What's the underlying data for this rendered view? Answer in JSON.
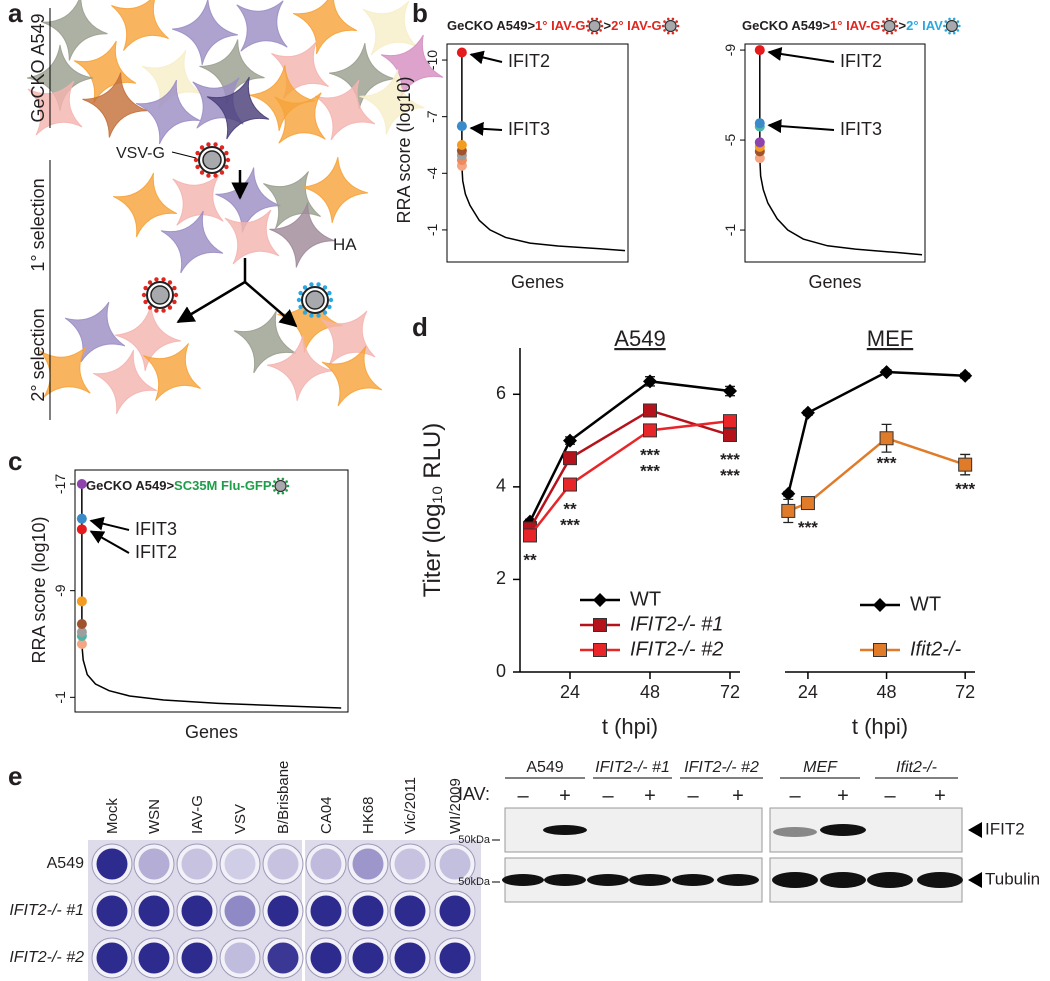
{
  "panel_labels": [
    "a",
    "b",
    "c",
    "d",
    "e"
  ],
  "panel_a": {
    "cell_line": "GeCKO A549",
    "selections": [
      "1° selection",
      "2° selection"
    ],
    "viruses": [
      "VSV-G",
      "HA"
    ]
  },
  "chart_data": [
    {
      "type": "rank",
      "title": [
        {
          "text": "GeCKO A549>",
          "color": "#231f20"
        },
        {
          "text": "1° IAV-G",
          "color": "#e0261f"
        },
        {
          "text": ">",
          "color": "#231f20"
        },
        {
          "text": "2° IAV-G",
          "color": "#e0261f"
        }
      ],
      "y_label": "RRA score (log10)",
      "x_label": "Genes",
      "ylim": [
        0.7,
        -10.85
      ],
      "yticks": [
        -10,
        -7,
        -4,
        -1
      ],
      "xlim": [
        -1700,
        19000
      ],
      "curve": {
        "x": [
          1,
          100,
          400,
          930,
          2000,
          3220,
          5000,
          7790,
          11000,
          15800,
          18660
        ],
        "values": [
          -4.4,
          -3.6,
          -2.9,
          -2.3,
          -1.5,
          -1.0,
          -0.6,
          -0.3,
          -0.15,
          0.0,
          0.1
        ]
      },
      "points": {
        "x": [
          1,
          2,
          3,
          4,
          5,
          6,
          7
        ],
        "values": [
          -10.4,
          -6.5,
          -5.5,
          -5.2,
          -4.95,
          -4.7,
          -4.4
        ],
        "colors": [
          "#e41a1c",
          "#3b8bc8",
          "#f39c1f",
          "#a0522d",
          "#9e9e9e",
          "#f08a5d",
          "#f4a582"
        ]
      },
      "annotations": [
        "IFIT2",
        "IFIT3"
      ]
    },
    {
      "type": "rank",
      "title": [
        {
          "text": "GeCKO A549>",
          "color": "#231f20"
        },
        {
          "text": "1° IAV-G",
          "color": "#e0261f"
        },
        {
          "text": ">",
          "color": "#231f20"
        },
        {
          "text": "2° IAV",
          "color": "#29a9e1"
        }
      ],
      "x_label": "Genes",
      "ylim": [
        0.42,
        -9.27
      ],
      "yticks": [
        -9,
        -5,
        -1
      ],
      "xlim": [
        -1700,
        19000
      ],
      "curve": {
        "x": [
          1,
          100,
          400,
          930,
          2000,
          3220,
          5000,
          7790,
          11000,
          15800,
          18660
        ],
        "values": [
          -4.2,
          -3.4,
          -2.8,
          -2.2,
          -1.5,
          -1.0,
          -0.6,
          -0.3,
          -0.15,
          0.0,
          0.1
        ]
      },
      "points": {
        "x": [
          1,
          2,
          3,
          4,
          5,
          6,
          7
        ],
        "values": [
          -9.0,
          -5.75,
          -5.6,
          -4.9,
          -4.7,
          -4.5,
          -4.2
        ],
        "colors": [
          "#e41a1c",
          "#3b8bc8",
          "#4bb5a8",
          "#8e44ad",
          "#f39c1f",
          "#a0522d",
          "#f4a582"
        ]
      },
      "annotations": [
        "IFIT2",
        "IFIT3"
      ]
    },
    {
      "type": "rank",
      "title": [
        {
          "text": "GeCKO A549>",
          "color": "#231f20"
        },
        {
          "text": "SC35M Flu-GFP",
          "color": "#1e9e48"
        }
      ],
      "y_label": "RRA score (log10)",
      "x_label": "Genes",
      "ylim": [
        0.1,
        -18.05
      ],
      "yticks": [
        -17,
        -9,
        -1
      ],
      "xlim": [
        -500,
        19500
      ],
      "curve": {
        "x": [
          1,
          100,
          400,
          1000,
          2000,
          3500,
          6000,
          10000,
          15000,
          19000
        ],
        "values": [
          -5.0,
          -3.8,
          -2.7,
          -2.0,
          -1.5,
          -1.1,
          -0.8,
          -0.55,
          -0.35,
          -0.2
        ]
      },
      "points": {
        "x": [
          1,
          2,
          3,
          4,
          5,
          6,
          7,
          8
        ],
        "values": [
          -17,
          -14.4,
          -13.6,
          -8.2,
          -6.5,
          -5.9,
          -5.6,
          -5.0
        ],
        "colors": [
          "#8e44ad",
          "#3b8bc8",
          "#e41a1c",
          "#f39c1f",
          "#a0522d",
          "#9e9e9e",
          "#4bb5a8",
          "#f4a582"
        ]
      },
      "annotations": [
        "IFIT3",
        "IFIT2"
      ]
    },
    {
      "type": "line",
      "title": "A549",
      "x_label": "t (hpi)",
      "y_label": "Titer (log₁₀ RLU)",
      "ylim": [
        0,
        7
      ],
      "yticks": [
        0,
        2,
        4,
        6
      ],
      "xlim": [
        9,
        75
      ],
      "xticks": [
        24,
        48,
        72
      ],
      "x": [
        12,
        24,
        48,
        72
      ],
      "series": [
        {
          "name": "WT",
          "color": "#000000",
          "marker": "diamond",
          "values": [
            3.25,
            5.0,
            6.28,
            6.07
          ],
          "errors": [
            0.05,
            0.08,
            0.1,
            0.1
          ]
        },
        {
          "name": "IFIT2-/- #1",
          "color": "#b5121b",
          "marker": "square",
          "values": [
            3.1,
            4.62,
            5.65,
            5.12
          ],
          "errors": [
            0.05,
            0.06,
            0.08,
            0.06
          ]
        },
        {
          "name": "IFIT2-/- #2",
          "color": "#e8262a",
          "marker": "square",
          "values": [
            2.95,
            4.05,
            5.22,
            5.42
          ],
          "errors": [
            0.05,
            0.05,
            0.06,
            0.06
          ]
        }
      ],
      "annotations": [
        {
          "x": 12,
          "text": "**"
        },
        {
          "x": 24,
          "text": "**"
        },
        {
          "x": 24,
          "text": "***"
        },
        {
          "x": 48,
          "text": "***"
        },
        {
          "x": 48,
          "text": "***"
        },
        {
          "x": 72,
          "text": "***"
        },
        {
          "x": 72,
          "text": "***"
        }
      ],
      "annotation_color": "#e2231a"
    },
    {
      "type": "line",
      "title": "MEF",
      "x_label": "t (hpi)",
      "ylim": [
        0,
        7
      ],
      "xlim": [
        17,
        75
      ],
      "xticks": [
        24,
        48,
        72
      ],
      "x": [
        18,
        24,
        48,
        72
      ],
      "series": [
        {
          "name": "WT",
          "color": "#000000",
          "marker": "diamond",
          "values": [
            3.85,
            5.6,
            6.48,
            6.4
          ],
          "errors": [
            0.05,
            0.05,
            0.05,
            0.05
          ]
        },
        {
          "name": "Ifit2-/-",
          "color": "#e07b2a",
          "marker": "square",
          "values": [
            3.48,
            3.65,
            5.05,
            4.48
          ],
          "errors": [
            0.25,
            0.05,
            0.3,
            0.22
          ]
        }
      ],
      "annotations": [
        {
          "x": 24,
          "text": "***"
        },
        {
          "x": 48,
          "text": "***"
        },
        {
          "x": 72,
          "text": "***"
        }
      ],
      "annotation_color": "#e07b2a"
    }
  ],
  "panel_e": {
    "plate": {
      "columns": [
        "Mock",
        "WSN",
        "IAV-G",
        "VSV",
        "B/Brisbane",
        "CA04",
        "HK68",
        "Vic/2011",
        "WI/2009"
      ],
      "rows": [
        "A549",
        "IFIT2-/- #1",
        "IFIT2-/- #2"
      ]
    },
    "blot": {
      "groups": [
        "A549",
        "IFIT2-/- #1",
        "IFIT2-/- #2",
        "MEF",
        "Ifit2-/-"
      ],
      "treatment": "IAV:",
      "signs": [
        "–",
        "+"
      ],
      "marker": "50kDa",
      "proteins": [
        "IFIT2",
        "Tubulin"
      ]
    }
  }
}
